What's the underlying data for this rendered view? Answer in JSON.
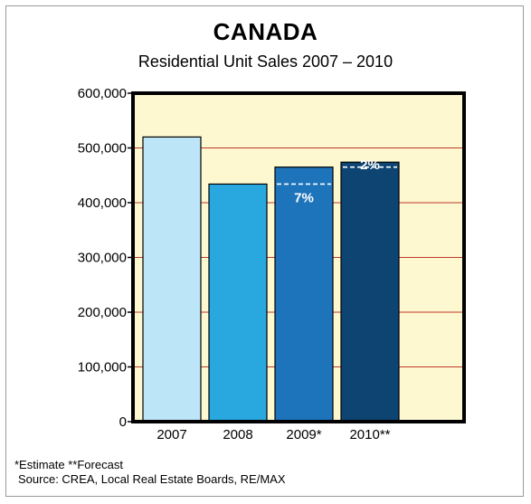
{
  "chart_data": {
    "type": "bar",
    "title": "CANADA",
    "subtitle": "Residential Unit Sales 2007 – 2010",
    "categories": [
      "2007",
      "2008",
      "2009*",
      "2010**"
    ],
    "values": [
      520000,
      434000,
      465000,
      474000
    ],
    "bar_colors": [
      "#bde5f8",
      "#29a8e0",
      "#1d74bb",
      "#0d4472"
    ],
    "ylim": [
      0,
      600000
    ],
    "yticks": [
      0,
      100000,
      200000,
      300000,
      400000,
      500000,
      600000
    ],
    "ytick_labels": [
      "0",
      "100,000",
      "200,000",
      "300,000",
      "400,000",
      "500,000",
      "600,000"
    ],
    "gridlines": true,
    "grid_color": "#c0392b",
    "plot_background": "#fdf8d0",
    "annotations": [
      {
        "text": "7%",
        "category": "2009*",
        "dashed_reference_value": 434000
      },
      {
        "text": "2%",
        "category": "2010**",
        "dashed_reference_value": 465000
      }
    ]
  },
  "footnote": {
    "line1": "*Estimate  **Forecast",
    "line2": "Source: CREA, Local Real Estate Boards, RE/MAX"
  }
}
